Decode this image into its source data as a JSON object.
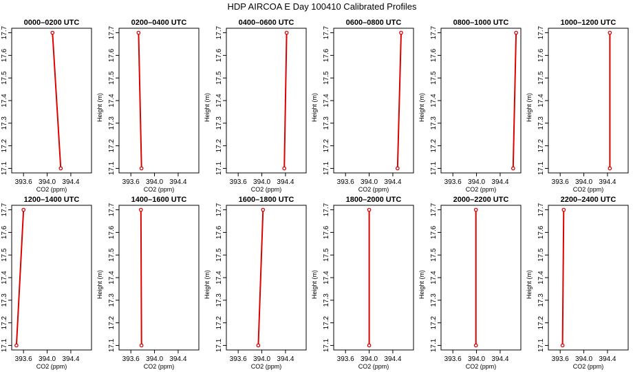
{
  "figure_title": "HDP AIRCOA E  Day 100410  Calibrated Profiles",
  "colors": {
    "profile": "#dd0000",
    "axes": "#000000",
    "background": "#ffffff"
  },
  "chart_data": [
    {
      "type": "line",
      "title": "0000–0200 UTC",
      "xlabel": "CO2 (ppm)",
      "ylabel": "Height (m)",
      "x_ticks": [
        "393.6",
        "394.0",
        "394.4"
      ],
      "y_ticks": [
        "17.1",
        "17.2",
        "17.3",
        "17.4",
        "17.5",
        "17.6",
        "17.7"
      ],
      "xlim": [
        393.4,
        394.75
      ],
      "ylim": [
        17.08,
        17.72
      ],
      "grid": false,
      "series": [
        {
          "x": [
            394.23,
            394.09
          ],
          "y": [
            17.1,
            17.7
          ]
        }
      ]
    },
    {
      "type": "line",
      "title": "0200–0400 UTC",
      "xlabel": "CO2 (ppm)",
      "ylabel": "Height (m)",
      "x_ticks": [
        "393.6",
        "394.0",
        "394.4"
      ],
      "y_ticks": [
        "17.1",
        "17.2",
        "17.3",
        "17.4",
        "17.5",
        "17.6",
        "17.7"
      ],
      "xlim": [
        393.4,
        394.75
      ],
      "ylim": [
        17.08,
        17.72
      ],
      "grid": false,
      "series": [
        {
          "x": [
            393.78,
            393.73
          ],
          "y": [
            17.1,
            17.7
          ]
        }
      ]
    },
    {
      "type": "line",
      "title": "0400–0600 UTC",
      "xlabel": "CO2 (ppm)",
      "ylabel": "Height (m)",
      "x_ticks": [
        "393.6",
        "394.0",
        "394.4"
      ],
      "y_ticks": [
        "17.1",
        "17.2",
        "17.3",
        "17.4",
        "17.5",
        "17.6",
        "17.7"
      ],
      "xlim": [
        393.4,
        394.75
      ],
      "ylim": [
        17.08,
        17.72
      ],
      "grid": false,
      "series": [
        {
          "x": [
            394.38,
            394.42
          ],
          "y": [
            17.1,
            17.7
          ]
        }
      ]
    },
    {
      "type": "line",
      "title": "0600–0800 UTC",
      "xlabel": "CO2 (ppm)",
      "ylabel": "Height (m)",
      "x_ticks": [
        "393.6",
        "394.0",
        "394.4"
      ],
      "y_ticks": [
        "17.1",
        "17.2",
        "17.3",
        "17.4",
        "17.5",
        "17.6",
        "17.7"
      ],
      "xlim": [
        393.4,
        394.75
      ],
      "ylim": [
        17.08,
        17.72
      ],
      "grid": false,
      "series": [
        {
          "x": [
            394.48,
            394.54
          ],
          "y": [
            17.1,
            17.7
          ]
        }
      ]
    },
    {
      "type": "line",
      "title": "0800–1000 UTC",
      "xlabel": "CO2 (ppm)",
      "ylabel": "Height (m)",
      "x_ticks": [
        "393.6",
        "394.0",
        "394.4"
      ],
      "y_ticks": [
        "17.1",
        "17.2",
        "17.3",
        "17.4",
        "17.5",
        "17.6",
        "17.7"
      ],
      "xlim": [
        393.4,
        394.75
      ],
      "ylim": [
        17.08,
        17.72
      ],
      "grid": false,
      "series": [
        {
          "x": [
            394.62,
            394.67
          ],
          "y": [
            17.1,
            17.7
          ]
        }
      ]
    },
    {
      "type": "line",
      "title": "1000–1200 UTC",
      "xlabel": "CO2 (ppm)",
      "ylabel": "Height (m)",
      "x_ticks": [
        "393.6",
        "394.0",
        "394.4"
      ],
      "y_ticks": [
        "17.1",
        "17.2",
        "17.3",
        "17.4",
        "17.5",
        "17.6",
        "17.7"
      ],
      "xlim": [
        393.4,
        394.75
      ],
      "ylim": [
        17.08,
        17.72
      ],
      "grid": false,
      "series": [
        {
          "x": [
            394.44,
            394.44
          ],
          "y": [
            17.1,
            17.7
          ]
        }
      ]
    },
    {
      "type": "line",
      "title": "1200–1400 UTC",
      "xlabel": "CO2 (ppm)",
      "ylabel": "Height (m)",
      "x_ticks": [
        "393.6",
        "394.0",
        "394.4"
      ],
      "y_ticks": [
        "17.1",
        "17.2",
        "17.3",
        "17.4",
        "17.5",
        "17.6",
        "17.7"
      ],
      "xlim": [
        393.4,
        394.75
      ],
      "ylim": [
        17.08,
        17.72
      ],
      "grid": false,
      "series": [
        {
          "x": [
            393.48,
            393.6
          ],
          "y": [
            17.1,
            17.7
          ]
        }
      ]
    },
    {
      "type": "line",
      "title": "1400–1600 UTC",
      "xlabel": "CO2 (ppm)",
      "ylabel": "Height (m)",
      "x_ticks": [
        "393.6",
        "394.0",
        "394.4"
      ],
      "y_ticks": [
        "17.1",
        "17.2",
        "17.3",
        "17.4",
        "17.5",
        "17.6",
        "17.7"
      ],
      "xlim": [
        393.4,
        394.75
      ],
      "ylim": [
        17.08,
        17.72
      ],
      "grid": false,
      "series": [
        {
          "x": [
            393.78,
            393.77
          ],
          "y": [
            17.1,
            17.7
          ]
        }
      ]
    },
    {
      "type": "line",
      "title": "1600–1800 UTC",
      "xlabel": "CO2 (ppm)",
      "ylabel": "Height (m)",
      "x_ticks": [
        "393.6",
        "394.0",
        "394.4"
      ],
      "y_ticks": [
        "17.1",
        "17.2",
        "17.3",
        "17.4",
        "17.5",
        "17.6",
        "17.7"
      ],
      "xlim": [
        393.4,
        394.75
      ],
      "ylim": [
        17.08,
        17.72
      ],
      "grid": false,
      "series": [
        {
          "x": [
            393.94,
            394.02
          ],
          "y": [
            17.1,
            17.7
          ]
        }
      ]
    },
    {
      "type": "line",
      "title": "1800–2000 UTC",
      "xlabel": "CO2 (ppm)",
      "ylabel": "Height (m)",
      "x_ticks": [
        "393.6",
        "394.0",
        "394.4"
      ],
      "y_ticks": [
        "17.1",
        "17.2",
        "17.3",
        "17.4",
        "17.5",
        "17.6",
        "17.7"
      ],
      "xlim": [
        393.4,
        394.75
      ],
      "ylim": [
        17.08,
        17.72
      ],
      "grid": false,
      "series": [
        {
          "x": [
            394.0,
            394.0
          ],
          "y": [
            17.1,
            17.7
          ]
        }
      ]
    },
    {
      "type": "line",
      "title": "2000–2200 UTC",
      "xlabel": "CO2 (ppm)",
      "ylabel": "Height (m)",
      "x_ticks": [
        "393.6",
        "394.0",
        "394.4"
      ],
      "y_ticks": [
        "17.1",
        "17.2",
        "17.3",
        "17.4",
        "17.5",
        "17.6",
        "17.7"
      ],
      "xlim": [
        393.4,
        394.75
      ],
      "ylim": [
        17.08,
        17.72
      ],
      "grid": false,
      "series": [
        {
          "x": [
            393.99,
            393.99
          ],
          "y": [
            17.1,
            17.7
          ]
        }
      ]
    },
    {
      "type": "line",
      "title": "2200–2400 UTC",
      "xlabel": "CO2 (ppm)",
      "ylabel": "Height (m)",
      "x_ticks": [
        "393.6",
        "394.0",
        "394.4"
      ],
      "y_ticks": [
        "17.1",
        "17.2",
        "17.3",
        "17.4",
        "17.5",
        "17.6",
        "17.7"
      ],
      "xlim": [
        393.4,
        394.75
      ],
      "ylim": [
        17.08,
        17.72
      ],
      "grid": false,
      "series": [
        {
          "x": [
            393.64,
            393.66
          ],
          "y": [
            17.1,
            17.7
          ]
        }
      ]
    }
  ]
}
